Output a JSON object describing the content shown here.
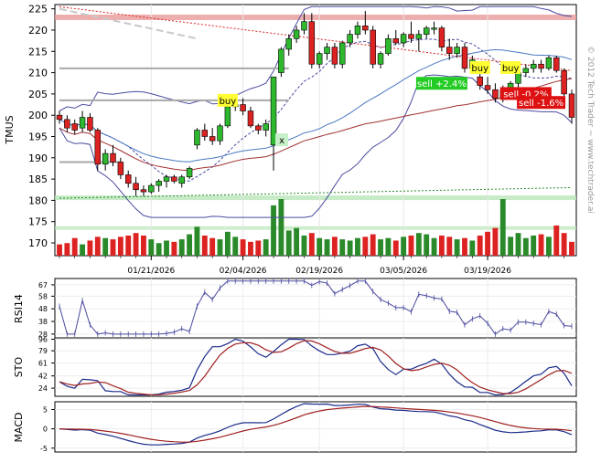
{
  "ticker": "TMUS",
  "copyright": "© 2012 Tech Trader ~ www.techtrader.ai",
  "dates": [
    "01/21/2026",
    "02/04/2026",
    "02/19/2026",
    "03/05/2026",
    "03/19/2026"
  ],
  "price_ticks": [
    "225",
    "220",
    "215",
    "210",
    "205",
    "200",
    "195",
    "190",
    "185",
    "180",
    "175",
    "170"
  ],
  "rsi_label": "RSI14",
  "rsi_ticks": [
    "67",
    "58",
    "48",
    "38",
    "28"
  ],
  "sto_label": "STO",
  "sto_ticks": [
    "96",
    "79",
    "61",
    "42",
    "24"
  ],
  "macd_label": "MACD",
  "macd_ticks": [
    "5",
    "0",
    "-5"
  ],
  "signals": [
    {
      "text": "buy",
      "type": "buy"
    },
    {
      "text": "buy",
      "type": "buy"
    },
    {
      "text": "buy",
      "type": "buy"
    },
    {
      "text": "sell +2.4%",
      "type": "sell-gain"
    },
    {
      "text": "sell -0.2%",
      "type": "sell-loss"
    },
    {
      "text": "sell -1.6%",
      "type": "sell-loss"
    }
  ],
  "cross_marker": "x",
  "colors": {
    "up": "#2a8a2a",
    "down": "#dd2222",
    "blue": "#3a3a9a",
    "red_line": "#a03030"
  },
  "chart_data": {
    "type": "candlestick",
    "price_ylim": [
      167,
      226
    ],
    "candles": [
      [
        200,
        201,
        198,
        199
      ],
      [
        199,
        200,
        196,
        197
      ],
      [
        198,
        199,
        195.5,
        196.5
      ],
      [
        197,
        201,
        196,
        199.5
      ],
      [
        199.5,
        200.5,
        196,
        196.5
      ],
      [
        196.5,
        197,
        187,
        188.5
      ],
      [
        188.5,
        192,
        187,
        191
      ],
      [
        191,
        193,
        188,
        189
      ],
      [
        189,
        190,
        185,
        186
      ],
      [
        186,
        187,
        183,
        184
      ],
      [
        184,
        185.5,
        181,
        182.5
      ],
      [
        182.5,
        183.5,
        181,
        182
      ],
      [
        182,
        184,
        181.5,
        183.5
      ],
      [
        183.5,
        185,
        182,
        184.5
      ],
      [
        184.5,
        186,
        183,
        185.5
      ],
      [
        185.5,
        186,
        184,
        184.5
      ],
      [
        184,
        186,
        183,
        185.5
      ],
      [
        185.5,
        188,
        185,
        187.5
      ],
      [
        193,
        197,
        192,
        196.5
      ],
      [
        196.5,
        198,
        194,
        195
      ],
      [
        195,
        197,
        193,
        194
      ],
      [
        194,
        198,
        193,
        197.5
      ],
      [
        197.5,
        202.5,
        197,
        202
      ],
      [
        202,
        203,
        201,
        202.5
      ],
      [
        202.5,
        204,
        200,
        201
      ],
      [
        201,
        202,
        197,
        197.5
      ],
      [
        197.5,
        198,
        195.5,
        196.5
      ],
      [
        196.5,
        199,
        195,
        198
      ],
      [
        193,
        209,
        187,
        209
      ],
      [
        210,
        216,
        209,
        215.5
      ],
      [
        215.5,
        219,
        214,
        218
      ],
      [
        218,
        221,
        217,
        220
      ],
      [
        220,
        224,
        219,
        222
      ],
      [
        222,
        224,
        211,
        212
      ],
      [
        212,
        215,
        211,
        214.5
      ],
      [
        214.5,
        217,
        213,
        216
      ],
      [
        216,
        217,
        211,
        212
      ],
      [
        212,
        217.5,
        211,
        217
      ],
      [
        217,
        220,
        216,
        219
      ],
      [
        219,
        222,
        218,
        221
      ],
      [
        221,
        224.5,
        219,
        220
      ],
      [
        220,
        221,
        211,
        212
      ],
      [
        212,
        215,
        211,
        214.5
      ],
      [
        214.5,
        219,
        214,
        218
      ],
      [
        218,
        220,
        216.5,
        217
      ],
      [
        217,
        219.5,
        216,
        219
      ],
      [
        219,
        222,
        217,
        218
      ],
      [
        218,
        220,
        215,
        219
      ],
      [
        219,
        221,
        218,
        220.5
      ],
      [
        220.5,
        222,
        219,
        220.5
      ],
      [
        220.5,
        221,
        215,
        216
      ],
      [
        216,
        218,
        213,
        214.5
      ],
      [
        214.5,
        217,
        213.5,
        216
      ],
      [
        216,
        217,
        210,
        211
      ],
      [
        211,
        214,
        210,
        213
      ],
      [
        209,
        211,
        206,
        207
      ],
      [
        207,
        209,
        205,
        206
      ],
      [
        206,
        207.5,
        203,
        204
      ],
      [
        204,
        207,
        203,
        206
      ],
      [
        206,
        208,
        205,
        207.5
      ],
      [
        207.5,
        211,
        206.5,
        210
      ],
      [
        210,
        212,
        209,
        211
      ],
      [
        211,
        213,
        210,
        212
      ],
      [
        212,
        213,
        210,
        211
      ],
      [
        211,
        214,
        210.5,
        213.5
      ],
      [
        213.5,
        214,
        210,
        210.5
      ],
      [
        210.5,
        211,
        204,
        205
      ],
      [
        205,
        206,
        198,
        199.5
      ]
    ],
    "volume": [
      9,
      10,
      14,
      9,
      12,
      15,
      14,
      13,
      15,
      16,
      18,
      16,
      13,
      10,
      12,
      11,
      13,
      17,
      23,
      16,
      14,
      13,
      19,
      15,
      13,
      11,
      12,
      13,
      40,
      45,
      20,
      22,
      16,
      18,
      14,
      13,
      15,
      13,
      12,
      14,
      15,
      17,
      13,
      14,
      12,
      15,
      16,
      18,
      17,
      14,
      16,
      15,
      13,
      14,
      12,
      16,
      19,
      22,
      45,
      15,
      18,
      14,
      16,
      17,
      15,
      24,
      18,
      11
    ]
  }
}
